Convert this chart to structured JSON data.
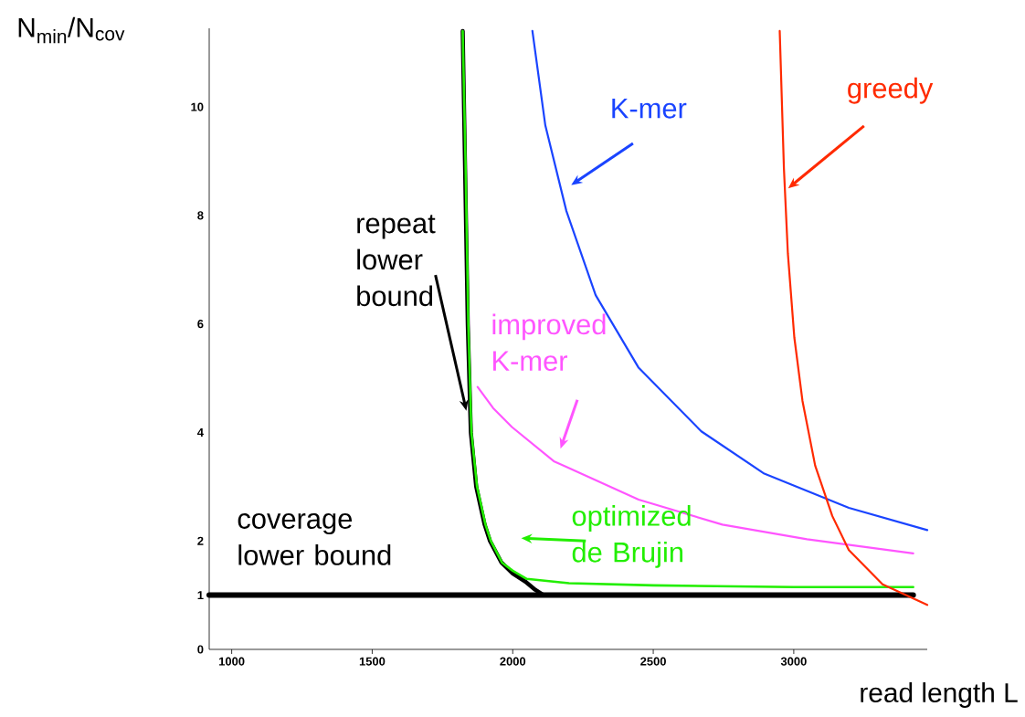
{
  "chart_data": {
    "type": "line",
    "xlabel": "read length L",
    "ylabel": "N$_{min}$/N$_{cov}$",
    "xlim": [
      920,
      3475
    ],
    "ylim": [
      0,
      11.45
    ],
    "xticks": [
      1000,
      1500,
      2000,
      2500,
      3000
    ],
    "yticks": [
      0,
      1,
      2,
      4,
      6,
      8,
      10
    ],
    "series": [
      {
        "name": "coverage lower bound",
        "color": "#000000",
        "x": [
          920,
          3425
        ],
        "values": [
          1,
          1
        ]
      },
      {
        "name": "repeat lower bound",
        "color": "#000000",
        "x": [
          1822,
          1830,
          1840,
          1851,
          1870,
          1900,
          1919,
          1960,
          2000,
          2045,
          2080,
          2110
        ],
        "values": [
          11.4,
          9,
          6,
          4,
          3,
          2.3,
          2,
          1.6,
          1.4,
          1.25,
          1.1,
          1
        ]
      },
      {
        "name": "optimized de Brujin",
        "color": "#22ee00",
        "x": [
          1822,
          1832,
          1842,
          1853,
          1873,
          1903,
          1922,
          1962,
          2000,
          2050,
          2200,
          2500,
          3000,
          3425
        ],
        "values": [
          11.4,
          9,
          6,
          4,
          3,
          2.3,
          2,
          1.6,
          1.45,
          1.3,
          1.22,
          1.18,
          1.15,
          1.15
        ]
      },
      {
        "name": "improved K-mer",
        "color": "#ff55ff",
        "x": [
          1875,
          1930,
          1997,
          2146,
          2448,
          2746,
          3047,
          3425
        ],
        "values": [
          4.84,
          4.45,
          4.1,
          3.47,
          2.76,
          2.3,
          2.03,
          1.77
        ]
      },
      {
        "name": "K-mer",
        "color": "#1a44ff",
        "x": [
          2070,
          2116,
          2191,
          2295,
          2447,
          2671,
          2895,
          3196,
          3475
        ],
        "values": [
          11.4,
          9.66,
          8.08,
          6.53,
          5.2,
          4.02,
          3.24,
          2.61,
          2.2
        ]
      },
      {
        "name": "greedy",
        "color": "#ff2a00",
        "x": [
          2950,
          2965,
          2979,
          3002,
          3031,
          3076,
          3137,
          3196,
          3316,
          3475
        ],
        "values": [
          11.4,
          8.86,
          7.3,
          5.75,
          4.58,
          3.39,
          2.46,
          1.83,
          1.2,
          0.82
        ]
      }
    ]
  }
}
